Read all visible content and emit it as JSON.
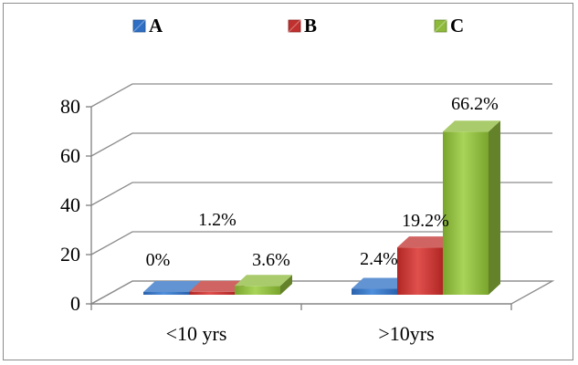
{
  "chart_data": {
    "type": "bar",
    "categories": [
      "<10 yrs",
      ">10yrs"
    ],
    "series": [
      {
        "name": "A",
        "values": [
          0,
          2.4
        ],
        "labels": [
          "0%",
          "2.4%"
        ],
        "color": "#2e6fc4"
      },
      {
        "name": "B",
        "values": [
          1.2,
          19.2
        ],
        "labels": [
          "1.2%",
          "19.2%"
        ],
        "color": "#c0302e"
      },
      {
        "name": "C",
        "values": [
          3.6,
          66.2
        ],
        "labels": [
          "3.6%",
          "66.2%"
        ],
        "color": "#8dba3b"
      }
    ],
    "yticks": [
      "0",
      "20",
      "40",
      "60",
      "80"
    ],
    "ylim": [
      0,
      80
    ],
    "grid": true,
    "legend": "top",
    "title": "",
    "xlabel": "",
    "ylabel": ""
  }
}
